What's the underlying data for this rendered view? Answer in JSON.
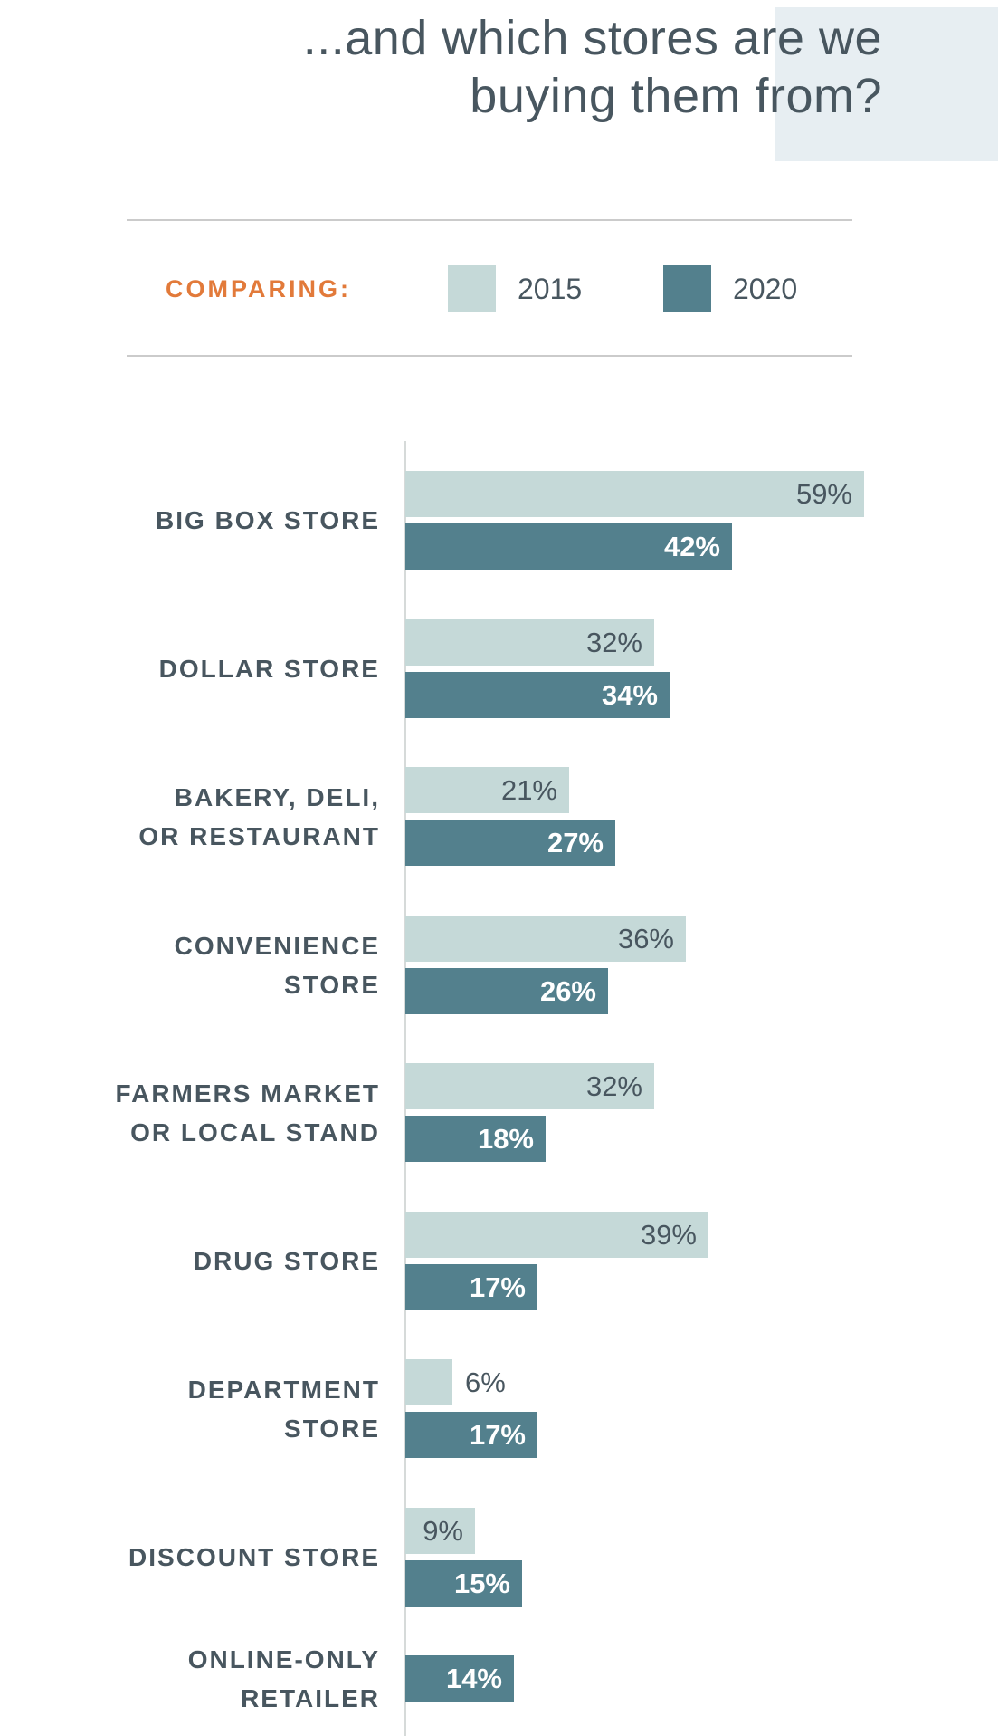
{
  "title": {
    "line1": "...and which stores are we",
    "line2": "buying them from?"
  },
  "legend": {
    "label": "COMPARING:",
    "items": [
      {
        "name": "2015",
        "color": "#c5d9d8"
      },
      {
        "name": "2020",
        "color": "#53808d"
      }
    ]
  },
  "chart_data": {
    "type": "bar",
    "orientation": "horizontal",
    "title": "...and which stores are we buying them from?",
    "unit": "percent",
    "value_suffix": "%",
    "categories": [
      [
        "BIG BOX STORE"
      ],
      [
        "DOLLAR STORE"
      ],
      [
        "BAKERY, DELI,",
        "OR RESTAURANT"
      ],
      [
        "CONVENIENCE",
        "STORE"
      ],
      [
        "FARMERS MARKET",
        "OR LOCAL STAND"
      ],
      [
        "DRUG STORE"
      ],
      [
        "DEPARTMENT",
        "STORE"
      ],
      [
        "DISCOUNT STORE"
      ],
      [
        "ONLINE-ONLY",
        "RETAILER"
      ]
    ],
    "series": [
      {
        "name": "2015",
        "color": "#c5d9d8",
        "values": [
          59,
          32,
          21,
          36,
          32,
          39,
          6,
          9,
          null
        ]
      },
      {
        "name": "2020",
        "color": "#53808d",
        "values": [
          42,
          34,
          27,
          26,
          18,
          17,
          17,
          15,
          14
        ]
      }
    ],
    "xlim": [
      0,
      76
    ],
    "grid": false,
    "legend_position": "top",
    "value_labels": "inside-end"
  },
  "colors": {
    "bar_2015": "#c5d9d8",
    "bar_2020": "#53808d",
    "text_dark": "#48565f",
    "accent_orange": "#e27a3a",
    "divider": "#cbcbcb",
    "axis": "#d6dad9",
    "corner_block": "#e7eef2",
    "value_on_dark": "#ffffff"
  }
}
